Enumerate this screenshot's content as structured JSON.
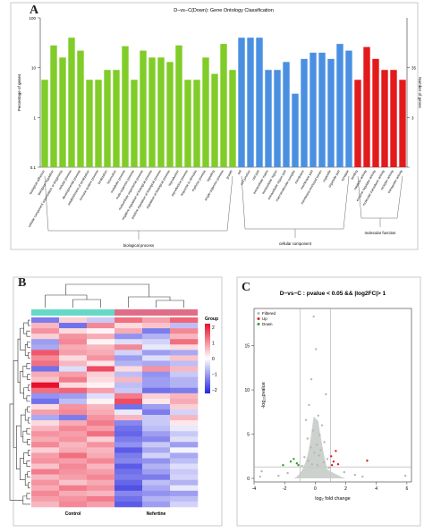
{
  "panels": {
    "a": "A",
    "b": "B",
    "c": "C"
  },
  "chart_data": [
    {
      "type": "bar",
      "panel": "A",
      "title": "D−vs−C(Down): Gene Ontology Classification",
      "ylabel_left": "Percentage of genes",
      "ylabel_right": "Number of genes",
      "yscale": "log",
      "ylim": [
        0.1,
        100
      ],
      "left_ticks": [
        "100",
        "10",
        "1",
        "0.1"
      ],
      "right_ticks": [
        "35",
        "3",
        ""
      ],
      "grid": false,
      "groups": [
        {
          "name": "biological process",
          "color": "#80cc28",
          "start": 0,
          "end": 21
        },
        {
          "name": "cellular component",
          "color": "#4a90e2",
          "start": 22,
          "end": 34
        },
        {
          "name": "molecular function",
          "color": "#e31a1c",
          "start": 35,
          "end": 40
        }
      ],
      "categories": [
        "biological adhesion",
        "biological regulation",
        "cellular component organization or biogenesis",
        "cellular process",
        "developmental process",
        "establishment of localization",
        "immune system process",
        "localization",
        "locomotion",
        "metabolic process",
        "multi-organism process",
        "multicellular organismal process",
        "negative regulation of biological process",
        "positive regulation of biological process",
        "regulation of biological process",
        "reproduction",
        "reproductive process",
        "response to stimulus",
        "rhythmic process",
        "signaling",
        "single-organism process",
        "growth",
        "cell",
        "cell junction",
        "cell part",
        "extracellular matrix",
        "extracellular region",
        "extracellular region part",
        "macromolecular complex",
        "membrane",
        "membrane part",
        "membrane-enclosed lumen",
        "organelle",
        "organelle part",
        "synapse",
        "binding",
        "catalytic activity",
        "enzyme regulator activity",
        "molecular transducer activity",
        "receptor activity",
        "transporter activity"
      ],
      "values": [
        5.7,
        28,
        16,
        40,
        22,
        5.7,
        5.7,
        9,
        9,
        27,
        5.7,
        22,
        16,
        16,
        13,
        28,
        5.7,
        5.7,
        16,
        7.5,
        30,
        9,
        40,
        40,
        40,
        9,
        9,
        13,
        3,
        15,
        20,
        20,
        15,
        30,
        22,
        5.7,
        26,
        15,
        9,
        9,
        5.7
      ]
    },
    {
      "type": "heatmap",
      "panel": "B",
      "group_legend_title": "Group",
      "colorbar_ticks": [
        "2",
        "1",
        "0",
        "−1",
        "−2"
      ],
      "colorscale": [
        "#2525e0",
        "#ffffff",
        "#e8102c"
      ],
      "x_groups": [
        "Control",
        "Nefertine"
      ],
      "group_colors": [
        "#66d9c6",
        "#e06d88"
      ],
      "columns": 6,
      "rows": 35,
      "values": [
        [
          -1.2,
          0.4,
          -0.5,
          1.2,
          0.8,
          1.3
        ],
        [
          0.6,
          -1.3,
          1.0,
          0.3,
          0.5,
          -0.6
        ],
        [
          0.9,
          0.3,
          0.1,
          0.7,
          -1.2,
          1.0
        ],
        [
          0.4,
          0.9,
          0.7,
          -1.0,
          -0.7,
          0.6
        ],
        [
          -0.9,
          1.0,
          0.1,
          -0.3,
          -0.4,
          1.2
        ],
        [
          -0.8,
          0.7,
          0.6,
          1.0,
          -0.2,
          0.3
        ],
        [
          1.4,
          0.8,
          0.7,
          -0.4,
          -0.9,
          -0.8
        ],
        [
          1.0,
          0.3,
          0.9,
          -0.9,
          -0.3,
          0.5
        ],
        [
          1.2,
          0.6,
          0.2,
          -0.7,
          -0.8,
          -0.6
        ],
        [
          -1.3,
          -0.3,
          1.5,
          0.3,
          0.9,
          0.6
        ],
        [
          0.7,
          0.8,
          0.4,
          -0.6,
          -1.0,
          -0.5
        ],
        [
          0.5,
          1.1,
          0.3,
          0.6,
          -0.9,
          -0.7
        ],
        [
          2.0,
          0.3,
          0.1,
          -0.6,
          -0.9,
          -0.7
        ],
        [
          1.2,
          1.3,
          0.8,
          -0.5,
          -1.3,
          -1.2
        ],
        [
          -1.0,
          -0.9,
          -0.3,
          1.1,
          0.4,
          0.6
        ],
        [
          -1.3,
          -0.6,
          0.1,
          1.5,
          0.2,
          0.7
        ],
        [
          0.3,
          0.9,
          0.6,
          -1.3,
          -0.9,
          0.4
        ],
        [
          0.8,
          1.0,
          0.7,
          -0.2,
          -1.2,
          -0.4
        ],
        [
          -0.8,
          -1.2,
          0.9,
          0.6,
          -0.5,
          0.6
        ],
        [
          0.3,
          0.7,
          1.1,
          -1.1,
          -0.5,
          0.2
        ],
        [
          0.6,
          1.0,
          0.8,
          -1.3,
          -0.6,
          -0.2
        ],
        [
          0.9,
          0.8,
          1.2,
          -1.4,
          -0.9,
          -0.5
        ],
        [
          0.7,
          0.9,
          0.4,
          -1.2,
          -1.1,
          -0.3
        ],
        [
          1.0,
          0.6,
          0.9,
          -1.0,
          -0.5,
          -0.9
        ],
        [
          0.4,
          0.7,
          0.6,
          -1.5,
          -0.8,
          -0.1
        ],
        [
          0.8,
          1.2,
          0.7,
          -1.2,
          -0.4,
          -0.8
        ],
        [
          0.9,
          0.8,
          1.0,
          -1.1,
          -1.0,
          -0.6
        ],
        [
          0.5,
          1.0,
          0.6,
          -1.5,
          -0.7,
          -0.3
        ],
        [
          1.1,
          0.9,
          0.8,
          -1.3,
          -0.9,
          -0.5
        ],
        [
          0.6,
          0.8,
          1.0,
          -1.2,
          -1.2,
          -0.4
        ],
        [
          0.9,
          0.5,
          0.7,
          -1.4,
          -0.6,
          -0.7
        ],
        [
          0.7,
          1.1,
          0.9,
          -1.6,
          -0.8,
          -0.2
        ],
        [
          1.0,
          0.7,
          0.6,
          -1.1,
          -1.0,
          -0.9
        ],
        [
          0.8,
          0.9,
          1.1,
          -1.3,
          -0.7,
          -0.6
        ],
        [
          0.6,
          1.0,
          0.8,
          -1.5,
          -0.9,
          -0.4
        ]
      ]
    },
    {
      "type": "scatter",
      "panel": "C",
      "title": "D−vs−C : pvalue < 0.05 && |log2FC|> 1",
      "xlabel": "log₂ fold change",
      "ylabel": "-log₁₀pvalue",
      "xlim": [
        -4,
        6.3
      ],
      "ylim": [
        -0.4,
        19.2
      ],
      "xticks": [
        -4,
        -2,
        0,
        2,
        4,
        6
      ],
      "yticks": [
        0,
        5,
        10,
        15
      ],
      "vlines": [
        -1,
        1
      ],
      "hline": 1.3,
      "legend": [
        {
          "name": "Filtered",
          "color": "#b4b8b4"
        },
        {
          "name": "Up",
          "color": "#e31a1c"
        },
        {
          "name": "Down",
          "color": "#2ca02c"
        }
      ],
      "legend_position": "top-left",
      "series": [
        {
          "name": "Filtered",
          "points": [
            [
              -0.1,
              18.3
            ],
            [
              0.05,
              14.6
            ],
            [
              -0.25,
              11.2
            ],
            [
              0.7,
              9.5
            ],
            [
              -0.4,
              8.3
            ],
            [
              0.2,
              7.1
            ],
            [
              -0.6,
              6.6
            ],
            [
              0.45,
              6.0
            ],
            [
              -0.15,
              5.4
            ],
            [
              0.3,
              4.9
            ],
            [
              -0.5,
              4.5
            ],
            [
              0.6,
              4.1
            ],
            [
              0.1,
              3.8
            ],
            [
              -0.3,
              3.5
            ],
            [
              0.35,
              3.2
            ],
            [
              -0.05,
              2.9
            ],
            [
              0.25,
              2.6
            ],
            [
              -0.7,
              2.4
            ],
            [
              0.8,
              2.2
            ],
            [
              -0.45,
              2.0
            ],
            [
              0.55,
              1.8
            ],
            [
              -0.2,
              1.6
            ],
            [
              0.15,
              1.5
            ],
            [
              -0.85,
              1.4
            ],
            [
              0.9,
              1.2
            ],
            [
              -3.6,
              0.2
            ],
            [
              -3.5,
              0.8
            ],
            [
              -2.4,
              0.3
            ],
            [
              2.6,
              0.4
            ],
            [
              3.1,
              0.2
            ],
            [
              5.9,
              0.3
            ],
            [
              -1.8,
              0.6
            ],
            [
              1.9,
              0.7
            ]
          ]
        },
        {
          "name": "Up",
          "points": [
            [
              1.05,
              2.5
            ],
            [
              1.2,
              1.9
            ],
            [
              1.5,
              1.6
            ],
            [
              1.35,
              3.1
            ],
            [
              1.1,
              1.5
            ],
            [
              3.4,
              2.0
            ]
          ]
        },
        {
          "name": "Down",
          "points": [
            [
              -1.2,
              1.7
            ],
            [
              -1.4,
              2.2
            ],
            [
              -1.1,
              1.5
            ],
            [
              -1.6,
              1.9
            ],
            [
              -2.1,
              1.5
            ]
          ]
        }
      ]
    }
  ]
}
